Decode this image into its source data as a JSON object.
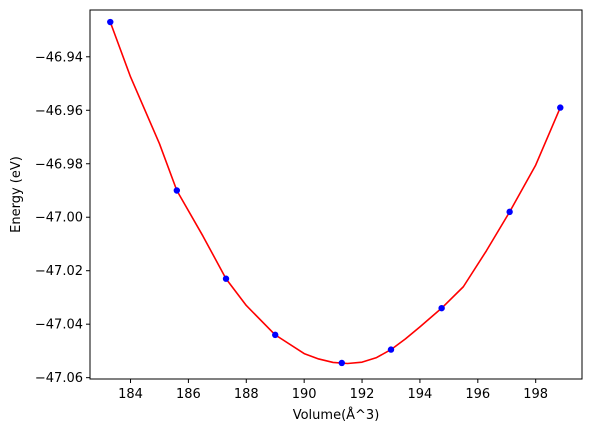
{
  "chart_data": {
    "type": "scatter",
    "title": "",
    "xlabel": "Volume(Å^3)",
    "ylabel": "Energy (eV)",
    "xlim": [
      182.6,
      199.6
    ],
    "ylim": [
      -47.0605,
      -46.9225
    ],
    "xticks": [
      184,
      186,
      188,
      190,
      192,
      194,
      196,
      198
    ],
    "yticks": [
      -46.94,
      -46.96,
      -46.98,
      -47.0,
      -47.02,
      -47.04,
      -47.06
    ],
    "ytick_labels": [
      "−46.94",
      "−46.96",
      "−46.98",
      "−47.00",
      "−47.02",
      "−47.04",
      "−47.06"
    ],
    "grid": false,
    "legend": "none",
    "series": [
      {
        "kind": "points",
        "color": "#0000ff",
        "x": [
          183.3,
          185.6,
          187.3,
          189.0,
          191.3,
          193.0,
          194.75,
          197.1,
          198.85
        ],
        "y": [
          -46.927,
          -46.99,
          -47.023,
          -47.044,
          -47.0545,
          -47.0495,
          -47.034,
          -46.998,
          -46.959
        ]
      },
      {
        "kind": "fit-curve",
        "color": "#ff0000",
        "x": [
          183.3,
          184.0,
          185.0,
          185.6,
          186.5,
          187.3,
          188.0,
          189.0,
          190.0,
          190.5,
          191.0,
          191.5,
          192.0,
          192.5,
          193.0,
          193.5,
          194.0,
          194.75,
          195.5,
          196.3,
          197.1,
          198.0,
          198.85
        ],
        "y": [
          -46.927,
          -46.9475,
          -46.9725,
          -46.99,
          -47.007,
          -47.023,
          -47.033,
          -47.044,
          -47.051,
          -47.053,
          -47.0543,
          -47.0547,
          -47.0542,
          -47.0525,
          -47.0495,
          -47.0455,
          -47.041,
          -47.034,
          -47.026,
          -47.0125,
          -46.998,
          -46.9805,
          -46.959
        ]
      }
    ]
  }
}
